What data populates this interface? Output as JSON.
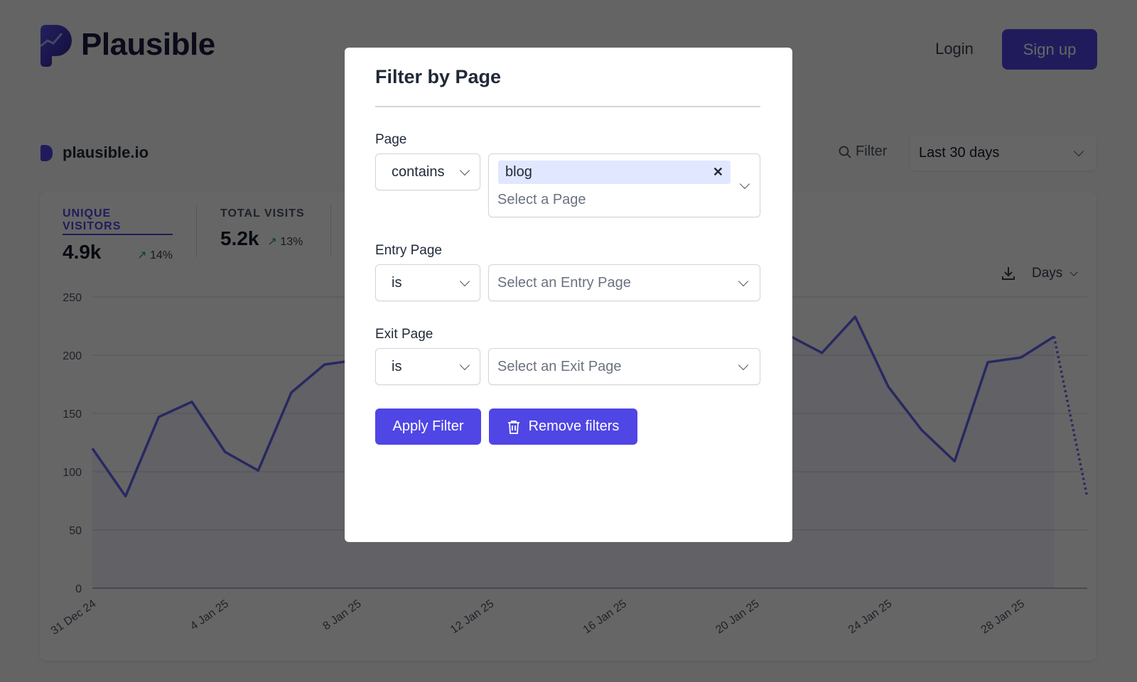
{
  "header": {
    "brand": "Plausible",
    "login": "Login",
    "signup": "Sign up"
  },
  "site": {
    "domain": "plausible.io",
    "filter_label": "Filter",
    "period": "Last 30 days"
  },
  "stats": [
    {
      "label": "UNIQUE VISITORS",
      "value": "4.9k",
      "change": "14%",
      "trend": "up",
      "active": true
    },
    {
      "label": "TOTAL VISITS",
      "value": "5.2k",
      "change": "13%",
      "trend": "up",
      "active": false
    }
  ],
  "chart_controls": {
    "interval": "Days",
    "download_icon": "download-icon"
  },
  "colors": {
    "accent": "#4f46e5",
    "line": "#6366f1",
    "positive": "#16a34a"
  },
  "chart_data": {
    "type": "line",
    "x": [
      "31 Dec 24",
      "1 Jan 25",
      "2 Jan 25",
      "3 Jan 25",
      "4 Jan 25",
      "5 Jan 25",
      "6 Jan 25",
      "7 Jan 25",
      "8 Jan 25",
      "9 Jan 25",
      "10 Jan 25",
      "11 Jan 25",
      "12 Jan 25",
      "13 Jan 25",
      "14 Jan 25",
      "15 Jan 25",
      "16 Jan 25",
      "17 Jan 25",
      "18 Jan 25",
      "19 Jan 25",
      "20 Jan 25",
      "21 Jan 25",
      "22 Jan 25",
      "23 Jan 25",
      "24 Jan 25",
      "25 Jan 25",
      "26 Jan 25",
      "27 Jan 25",
      "28 Jan 25",
      "29 Jan 25",
      "30 Jan 25"
    ],
    "values": [
      120,
      79,
      147,
      160,
      117,
      101,
      168,
      192,
      196,
      null,
      null,
      null,
      null,
      null,
      null,
      null,
      null,
      null,
      null,
      null,
      null,
      217,
      202,
      233,
      173,
      136,
      109,
      194,
      198,
      216,
      78
    ],
    "xticks": [
      "31 Dec 24",
      "4 Jan 25",
      "8 Jan 25",
      "12 Jan 25",
      "16 Jan 25",
      "20 Jan 25",
      "24 Jan 25",
      "28 Jan 25"
    ],
    "yticks": [
      "0",
      "50",
      "100",
      "150",
      "200",
      "250"
    ],
    "ylim": [
      0,
      250
    ],
    "grid": true,
    "incomplete_last_point": true
  },
  "modal": {
    "title": "Filter by Page",
    "page": {
      "label": "Page",
      "operator": "contains",
      "tag": "blog",
      "placeholder": "Select a Page"
    },
    "entry": {
      "label": "Entry Page",
      "operator": "is",
      "placeholder": "Select an Entry Page"
    },
    "exit": {
      "label": "Exit Page",
      "operator": "is",
      "placeholder": "Select an Exit Page"
    },
    "apply": "Apply Filter",
    "remove": "Remove filters"
  }
}
